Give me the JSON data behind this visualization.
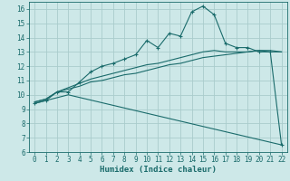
{
  "title": "",
  "xlabel": "Humidex (Indice chaleur)",
  "ylabel": "",
  "bg_color": "#cde8e8",
  "grid_color": "#aacccc",
  "line_color": "#1a6b6b",
  "xlim": [
    -0.5,
    22.5
  ],
  "ylim": [
    6,
    16.5
  ],
  "xticks": [
    0,
    1,
    2,
    3,
    4,
    5,
    6,
    7,
    8,
    9,
    10,
    11,
    12,
    13,
    14,
    15,
    16,
    17,
    18,
    19,
    20,
    21,
    22
  ],
  "yticks": [
    6,
    7,
    8,
    9,
    10,
    11,
    12,
    13,
    14,
    15,
    16
  ],
  "line1_x": [
    0,
    1,
    2,
    3,
    4,
    5,
    6,
    7,
    8,
    9,
    10,
    11,
    12,
    13,
    14,
    15,
    16,
    17,
    18,
    19,
    20,
    21,
    22
  ],
  "line1_y": [
    9.4,
    9.6,
    10.2,
    10.2,
    10.9,
    11.6,
    12.0,
    12.2,
    12.5,
    12.8,
    13.8,
    13.3,
    14.3,
    14.1,
    15.8,
    16.2,
    15.6,
    13.6,
    13.3,
    13.3,
    13.0,
    13.0,
    6.5
  ],
  "line2_x": [
    0,
    1,
    2,
    3,
    4,
    5,
    6,
    7,
    8,
    9,
    10,
    11,
    12,
    13,
    14,
    15,
    16,
    17,
    18,
    19,
    20,
    21,
    22
  ],
  "line2_y": [
    9.5,
    9.7,
    10.2,
    10.5,
    10.8,
    11.1,
    11.3,
    11.5,
    11.7,
    11.9,
    12.1,
    12.2,
    12.4,
    12.6,
    12.8,
    13.0,
    13.1,
    13.0,
    13.0,
    13.0,
    13.1,
    13.1,
    13.0
  ],
  "line3_x": [
    0,
    1,
    2,
    3,
    4,
    5,
    6,
    7,
    8,
    9,
    10,
    11,
    12,
    13,
    14,
    15,
    16,
    17,
    18,
    19,
    20,
    21,
    22
  ],
  "line3_y": [
    9.5,
    9.7,
    10.2,
    10.4,
    10.6,
    10.9,
    11.0,
    11.2,
    11.4,
    11.5,
    11.7,
    11.9,
    12.1,
    12.2,
    12.4,
    12.6,
    12.7,
    12.8,
    12.9,
    13.0,
    13.1,
    13.0,
    13.0
  ],
  "line4_x": [
    0,
    3,
    22
  ],
  "line4_y": [
    9.4,
    10.0,
    6.5
  ]
}
